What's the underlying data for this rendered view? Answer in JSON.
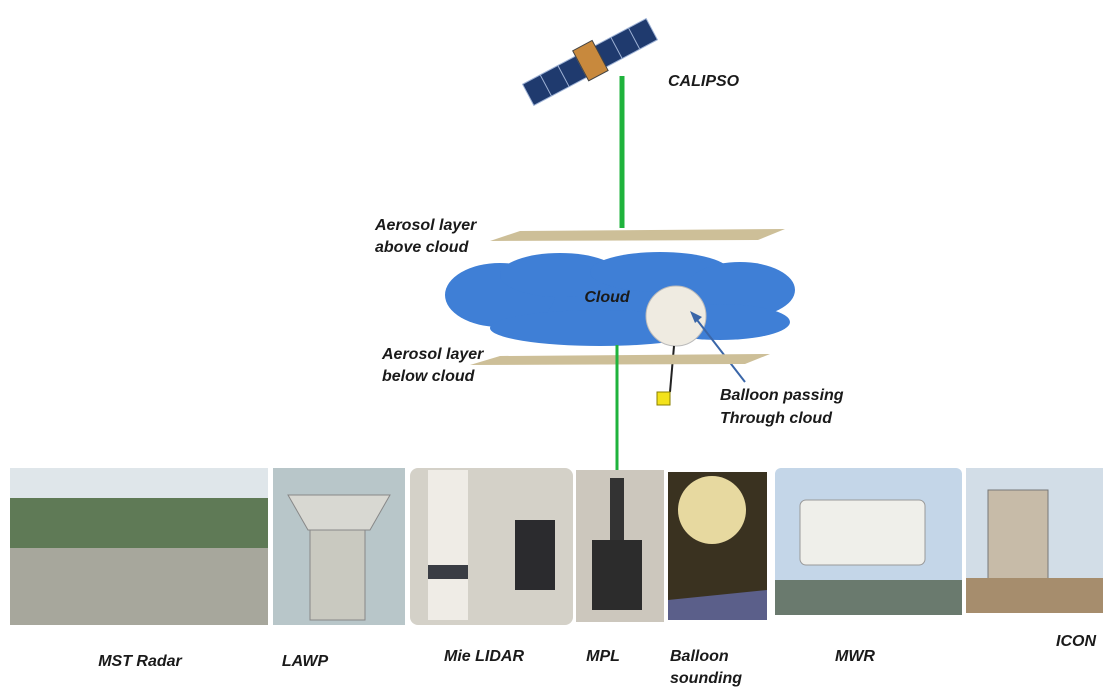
{
  "satellite": {
    "label": "CALIPSO"
  },
  "layers": {
    "above": [
      "Aerosol layer",
      "above cloud"
    ],
    "below": [
      "Aerosol layer",
      "below cloud"
    ]
  },
  "cloud": {
    "label": "Cloud"
  },
  "balloon": {
    "label": [
      "Balloon passing",
      "Through cloud"
    ]
  },
  "instruments": [
    {
      "label": [
        "MST Radar"
      ]
    },
    {
      "label": [
        "LAWP"
      ]
    },
    {
      "label": [
        "Mie LIDAR"
      ]
    },
    {
      "label": [
        "MPL"
      ]
    },
    {
      "label": [
        "Balloon",
        "sounding"
      ]
    },
    {
      "label": [
        "MWR"
      ]
    },
    {
      "label": [
        "ICON"
      ]
    }
  ]
}
